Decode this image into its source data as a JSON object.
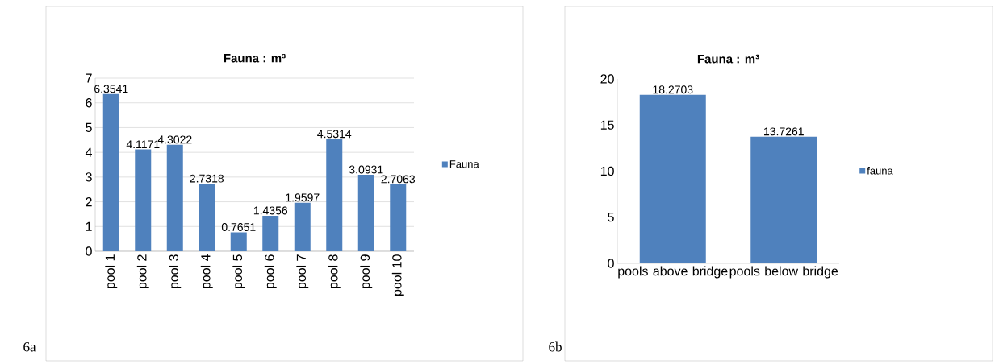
{
  "chart_data": [
    {
      "type": "bar",
      "title": "Fauna : m³",
      "categories": [
        "pool 1",
        "pool 2",
        "pool 3",
        "pool 4",
        "pool 5",
        "pool 6",
        "pool 7",
        "pool 8",
        "pool 9",
        "pool 10"
      ],
      "series": [
        {
          "name": "Fauna",
          "color": "#4f81bd",
          "values": [
            6.3541,
            4.1171,
            4.3022,
            2.7318,
            0.7651,
            1.4356,
            1.9597,
            4.5314,
            3.0931,
            2.7063
          ]
        }
      ],
      "ylim": [
        0,
        7
      ],
      "yticks": [
        0,
        1,
        2,
        3,
        4,
        5,
        6,
        7
      ],
      "grid": "y",
      "legend": "right",
      "data_labels": true,
      "annotations": [
        "6a"
      ]
    },
    {
      "type": "bar",
      "title": "Fauna : m³",
      "categories": [
        "pools above bridge",
        "pools below bridge"
      ],
      "series": [
        {
          "name": "fauna",
          "color": "#4f81bd",
          "values": [
            18.2703,
            13.7261
          ]
        }
      ],
      "ylim": [
        0,
        20
      ],
      "yticks": [
        0,
        5,
        10,
        15,
        20
      ],
      "legend": "right",
      "data_labels": true,
      "annotations": [
        "6b"
      ]
    }
  ]
}
